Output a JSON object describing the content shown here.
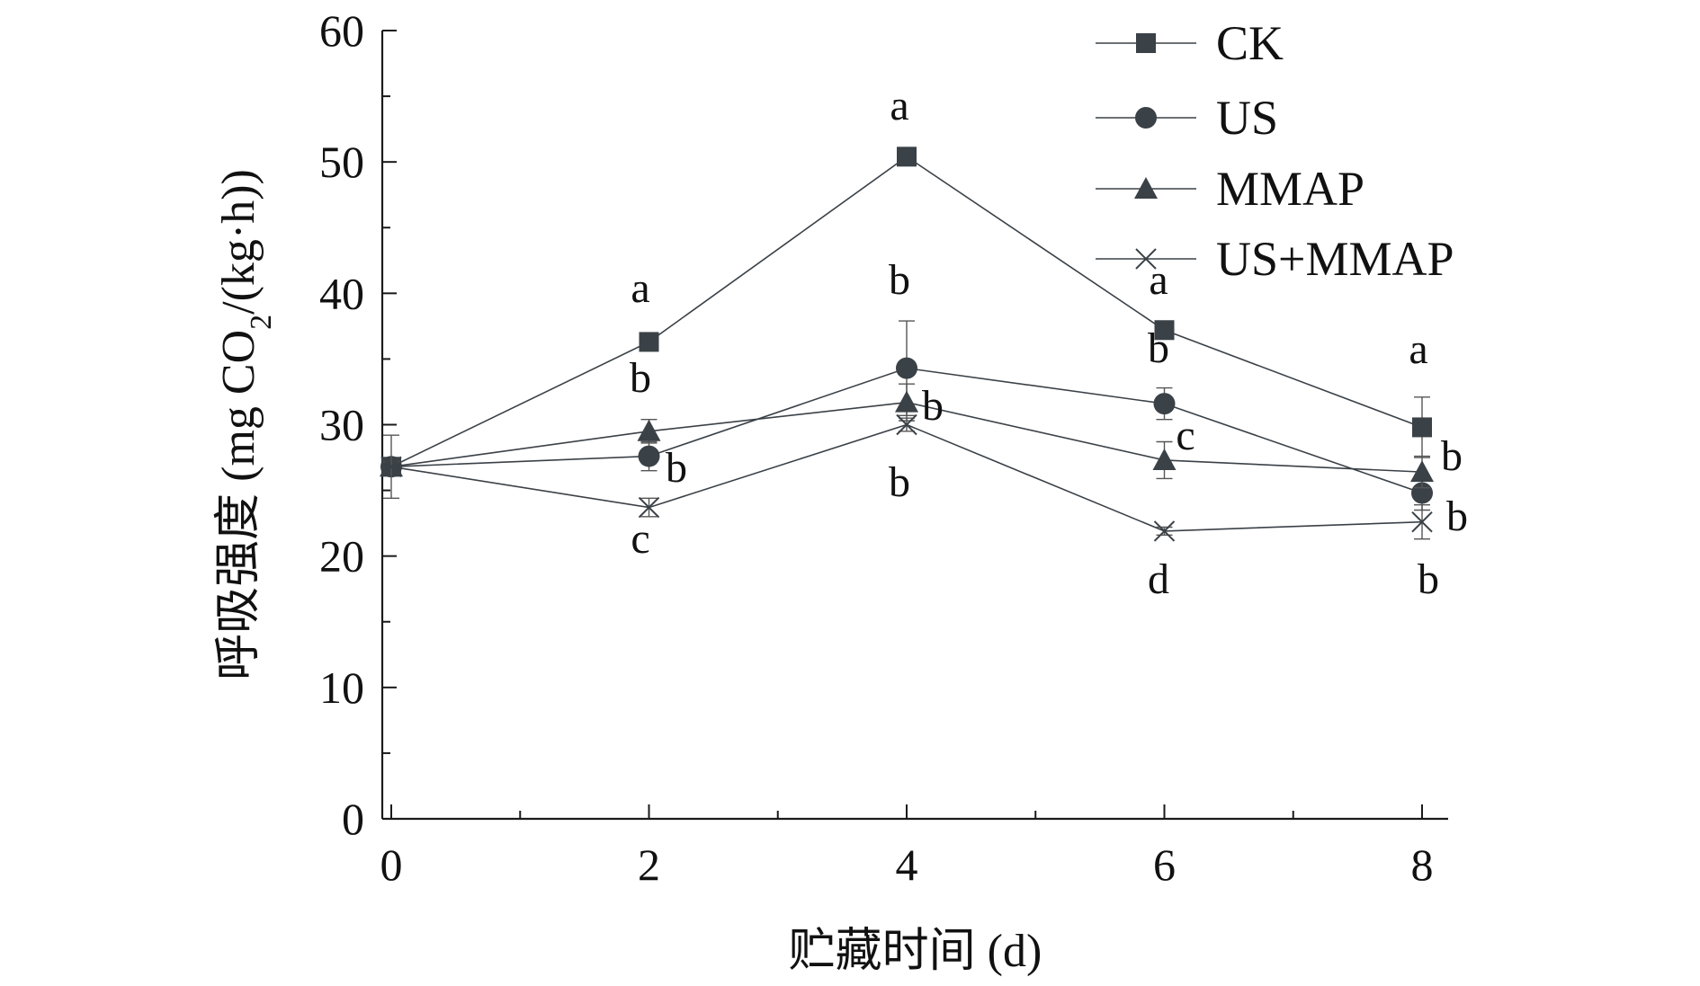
{
  "chart_data": {
    "type": "line",
    "xlabel": "贮藏时间 (d)",
    "ylabel_main": "呼吸强度 (mg CO",
    "ylabel_sub": "2",
    "ylabel_tail": "/(kg·h))",
    "xlim": [
      0,
      8
    ],
    "ylim": [
      0,
      60
    ],
    "x_ticks": [
      0,
      2,
      4,
      6,
      8
    ],
    "y_ticks": [
      0,
      10,
      20,
      30,
      40,
      50,
      60
    ],
    "x": [
      0,
      2,
      4,
      6,
      8
    ],
    "legend_position": "top-right",
    "grid": false,
    "color": "#3a4147",
    "series": [
      {
        "name": "CK",
        "marker": "square",
        "values": [
          26.8,
          36.3,
          50.4,
          37.2,
          29.8
        ],
        "errors": [
          0.4,
          0.4,
          0.6,
          0.4,
          2.3
        ],
        "letters": [
          "",
          "a",
          "a",
          "a",
          "a"
        ]
      },
      {
        "name": "US",
        "marker": "circle",
        "values": [
          26.8,
          27.6,
          34.3,
          31.6,
          24.8
        ],
        "errors": [
          0.4,
          1.1,
          3.6,
          1.2,
          1.3
        ],
        "letters": [
          "",
          "b",
          "b",
          "b",
          "b"
        ]
      },
      {
        "name": "MMAP",
        "marker": "triangle",
        "values": [
          26.8,
          29.5,
          31.7,
          27.3,
          26.4
        ],
        "errors": [
          0.4,
          0.9,
          1.4,
          1.4,
          1.2
        ],
        "letters": [
          "",
          "b",
          "b",
          "c",
          "b"
        ]
      },
      {
        "name": "US+MMAP",
        "marker": "cross",
        "values": [
          26.8,
          23.7,
          30.0,
          21.9,
          22.6
        ],
        "errors": [
          2.4,
          0.7,
          0.5,
          0.3,
          1.3
        ],
        "letters": [
          "",
          "c",
          "b",
          "d",
          "b"
        ]
      }
    ]
  }
}
